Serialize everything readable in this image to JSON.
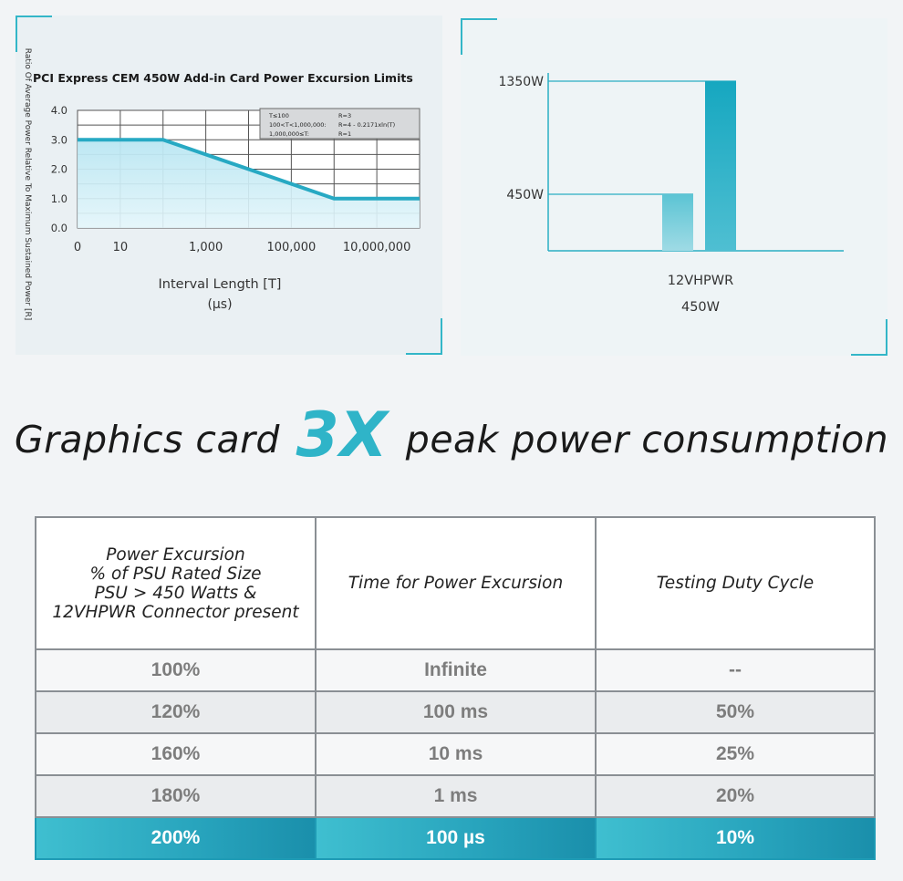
{
  "colors": {
    "accent": "#2fb4c8",
    "accent_dark": "#1a8fab",
    "text": "#222222",
    "muted": "#7d7d7d"
  },
  "chart_data": [
    {
      "type": "area",
      "title": "PCI Express CEM 450W Add-in Card Power Excursion Limits",
      "xlabel": "Interval Length [T]",
      "xlabel_unit": "(µs)",
      "ylabel": "Ratio Of Average Power Relative To Maximum Sustained Power [R]",
      "x_ticks": [
        "0",
        "10",
        "1,000",
        "100,000",
        "10,000,000"
      ],
      "y_ticks": [
        "0.0",
        "1.0",
        "2.0",
        "3.0",
        "4.0"
      ],
      "x_scale": "log",
      "ylim": [
        0,
        4
      ],
      "grid": true,
      "series": [
        {
          "x": [
            1,
            100,
            1000000,
            100000000
          ],
          "y": [
            3,
            3,
            1,
            1
          ]
        }
      ],
      "legend_box": {
        "placement": "top-right",
        "rows": [
          {
            "condition": "T≤100",
            "formula": "R=3"
          },
          {
            "condition": "100<T<1,000,000:",
            "formula": "R=4 - 0.2171xln(T)"
          },
          {
            "condition": "1,000,000≤T:",
            "formula": "R=1"
          }
        ]
      }
    },
    {
      "type": "bar",
      "categories": [
        "12VHPWR 450W"
      ],
      "category_lines": [
        "12VHPWR",
        "450W"
      ],
      "y_ticks": [
        "450W",
        "1350W"
      ],
      "series": [
        {
          "values": [
            450
          ]
        },
        {
          "values": [
            1350
          ]
        }
      ],
      "ylim": [
        0,
        1500
      ]
    }
  ],
  "headline": {
    "before": "Graphics card",
    "highlight": "3X",
    "after": "peak power consumption"
  },
  "table": {
    "headers": [
      [
        "Power Excursion",
        "% of PSU Rated Size",
        "PSU > 450 Watts &",
        "12VHPWR Connector present"
      ],
      [
        "Time for Power Excursion"
      ],
      [
        "Testing Duty Cycle"
      ]
    ],
    "rows": [
      [
        "100%",
        "Infinite",
        "--"
      ],
      [
        "120%",
        "100 ms",
        "50%"
      ],
      [
        "160%",
        "10 ms",
        "25%"
      ],
      [
        "180%",
        "1 ms",
        "20%"
      ],
      [
        "200%",
        "100 µs",
        "10%"
      ]
    ]
  }
}
